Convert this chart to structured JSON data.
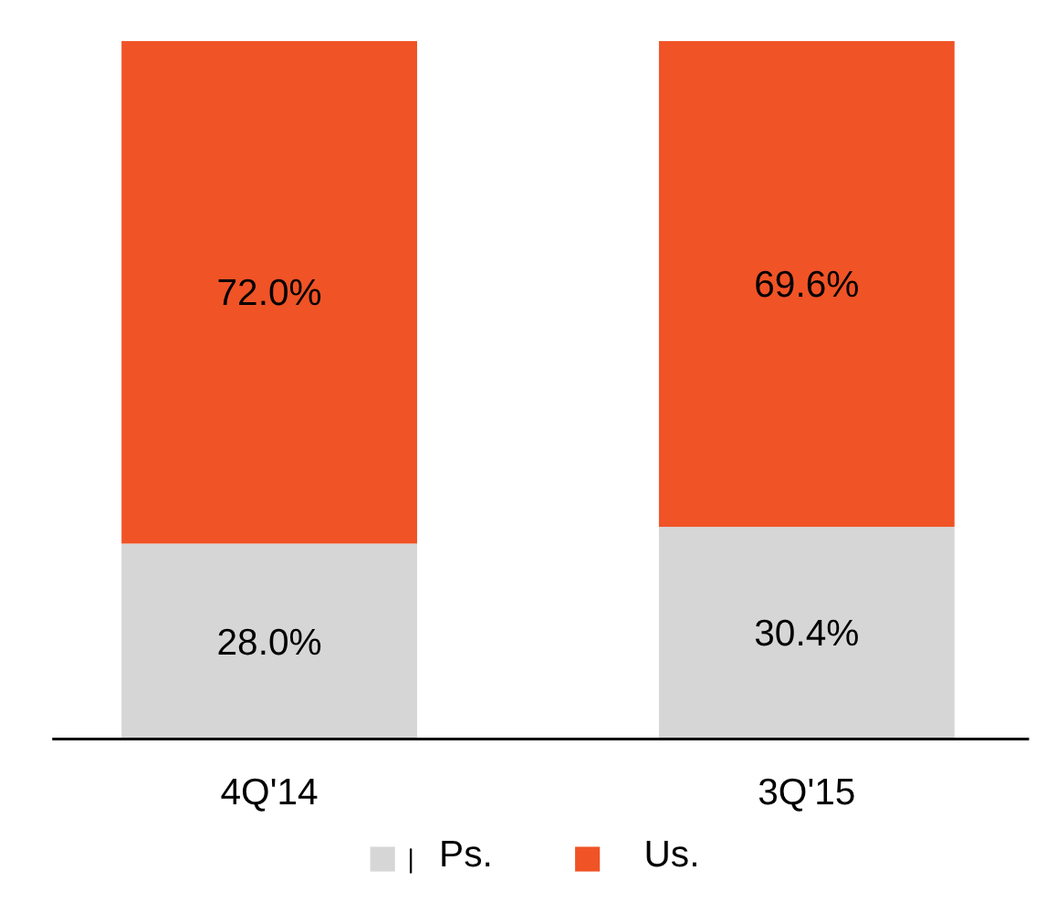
{
  "chart_data": {
    "type": "bar",
    "stacked": true,
    "data_labels": true,
    "legend": "bottom",
    "categories": [
      "4Q'14",
      "3Q'15"
    ],
    "series": [
      {
        "name": "Ps.",
        "color": "#d6d6d6",
        "values": [
          28.0,
          30.4
        ],
        "value_labels": [
          "28.0%",
          "30.4%"
        ]
      },
      {
        "name": "Us.",
        "color": "#f05326",
        "values": [
          72.0,
          69.6
        ],
        "value_labels": [
          "72.0%",
          "69.6%"
        ]
      }
    ]
  }
}
